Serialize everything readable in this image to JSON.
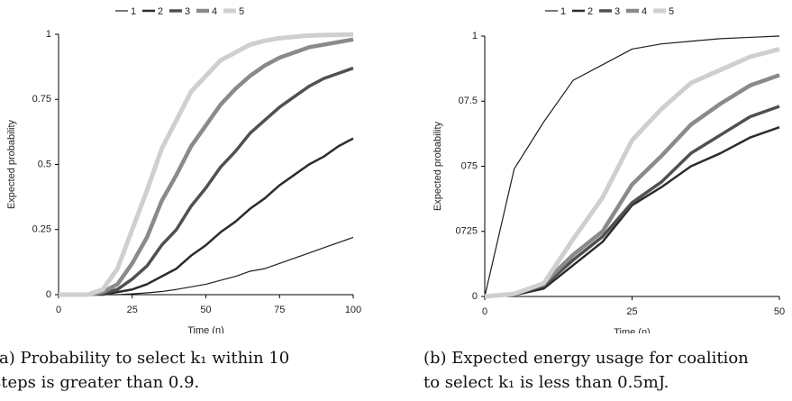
{
  "chart_data": [
    {
      "type": "line",
      "x_label": "Time (n)",
      "y_label": "Expected probability",
      "x": [
        0,
        5,
        10,
        15,
        20,
        25,
        30,
        35,
        40,
        45,
        50,
        55,
        60,
        65,
        70,
        75,
        80,
        85,
        90,
        95,
        100
      ],
      "xlim": [
        0,
        100
      ],
      "xticks": [
        0,
        25,
        50,
        75,
        100
      ],
      "ylim": [
        0,
        1
      ],
      "yticks": [
        0,
        0.25,
        0.5,
        0.75,
        1
      ],
      "legend": "top",
      "series": [
        {
          "name": "1",
          "color": "#1e1e1e",
          "line_width": 1.2,
          "values": [
            0,
            0,
            0,
            0,
            0,
            0.003,
            0.007,
            0.012,
            0.02,
            0.03,
            0.04,
            0.055,
            0.07,
            0.09,
            0.1,
            0.12,
            0.14,
            0.16,
            0.18,
            0.2,
            0.22
          ]
        },
        {
          "name": "2",
          "color": "#2c2c2c",
          "line_width": 2.5,
          "values": [
            0,
            0,
            0,
            0,
            0.01,
            0.02,
            0.04,
            0.07,
            0.1,
            0.15,
            0.19,
            0.24,
            0.28,
            0.33,
            0.37,
            0.42,
            0.46,
            0.5,
            0.53,
            0.57,
            0.6
          ]
        },
        {
          "name": "3",
          "color": "#505050",
          "line_width": 3.5,
          "values": [
            0,
            0,
            0,
            0.005,
            0.02,
            0.06,
            0.11,
            0.19,
            0.25,
            0.34,
            0.41,
            0.49,
            0.55,
            0.62,
            0.67,
            0.72,
            0.76,
            0.8,
            0.83,
            0.85,
            0.87
          ]
        },
        {
          "name": "4",
          "color": "#8a8a8a",
          "line_width": 4.5,
          "values": [
            0,
            0,
            0,
            0.01,
            0.04,
            0.12,
            0.22,
            0.36,
            0.46,
            0.57,
            0.65,
            0.73,
            0.79,
            0.84,
            0.88,
            0.91,
            0.93,
            0.95,
            0.96,
            0.97,
            0.98
          ]
        },
        {
          "name": "5",
          "color": "#cfcfcf",
          "line_width": 5,
          "values": [
            0,
            0,
            0,
            0.02,
            0.1,
            0.25,
            0.4,
            0.56,
            0.67,
            0.78,
            0.84,
            0.9,
            0.93,
            0.96,
            0.975,
            0.985,
            0.99,
            0.995,
            0.997,
            0.998,
            0.999
          ]
        }
      ],
      "caption": [
        "(a) Probability to select k₁ within 10",
        "steps is greater than 0.9."
      ]
    },
    {
      "type": "line",
      "x_label": "Time (n)",
      "y_label": "Expected probability",
      "x": [
        0,
        5,
        10,
        15,
        20,
        25,
        30,
        35,
        40,
        45,
        50
      ],
      "xlim": [
        0,
        50
      ],
      "xticks": [
        0,
        25,
        50
      ],
      "ylim": [
        0,
        1
      ],
      "yticks": [
        0,
        {
          "value": 0.25,
          "label": "0725"
        },
        {
          "value": 0.5,
          "label": "075"
        },
        {
          "value": 0.75,
          "label": "07.5"
        },
        1
      ],
      "legend": "top",
      "series": [
        {
          "name": "1",
          "color": "#1e1e1e",
          "line_width": 1.2,
          "values": [
            0,
            0.49,
            0.67,
            0.83,
            0.89,
            0.95,
            0.97,
            0.98,
            0.99,
            0.995,
            1
          ]
        },
        {
          "name": "2",
          "color": "#2c2c2c",
          "line_width": 2.5,
          "values": [
            0,
            0.005,
            0.03,
            0.12,
            0.21,
            0.35,
            0.42,
            0.5,
            0.55,
            0.61,
            0.65
          ]
        },
        {
          "name": "3",
          "color": "#505050",
          "line_width": 3.5,
          "values": [
            0,
            0.01,
            0.04,
            0.14,
            0.23,
            0.36,
            0.44,
            0.55,
            0.62,
            0.69,
            0.73
          ]
        },
        {
          "name": "4",
          "color": "#8a8a8a",
          "line_width": 4.5,
          "values": [
            0,
            0.01,
            0.05,
            0.16,
            0.25,
            0.43,
            0.54,
            0.66,
            0.74,
            0.81,
            0.85
          ]
        },
        {
          "name": "5",
          "color": "#cfcfcf",
          "line_width": 5,
          "values": [
            0,
            0.01,
            0.05,
            0.22,
            0.38,
            0.6,
            0.72,
            0.82,
            0.87,
            0.92,
            0.95
          ]
        }
      ],
      "caption": [
        "(b) Expected energy usage for coalition",
        "to select k₁ is less than 0.5mJ."
      ]
    }
  ]
}
